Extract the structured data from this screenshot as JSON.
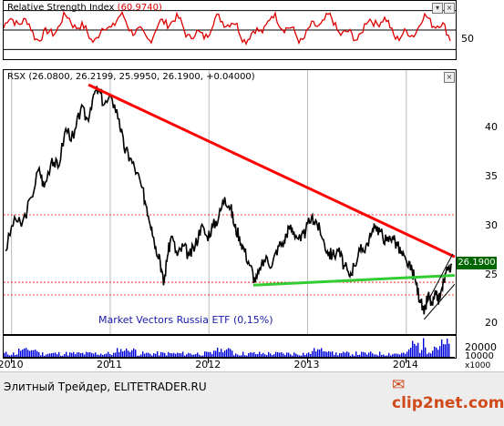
{
  "chart_data": [
    {
      "type": "line",
      "name_label": "Relative Strength Index",
      "value_label": "(60.9740)",
      "y_ticks": [
        50
      ],
      "levels": [
        30,
        50,
        70
      ],
      "ylim": [
        20,
        80
      ],
      "series_color": "#dd0000"
    },
    {
      "type": "line",
      "title": "RSX (26.0800, 26.2199, 25.9950, 26.1900, +0.04000)",
      "annotation": "Market Vectors Russia ETF (0,15%)",
      "last_value_label": "26.1900",
      "y_ticks": [
        20,
        25,
        30,
        35,
        40
      ],
      "ylim": [
        19,
        46
      ],
      "x_ticks": [
        "2010",
        "2011",
        "2012",
        "2013",
        "2014"
      ],
      "x_range": [
        2009.92,
        2014.5
      ],
      "series": [
        {
          "values": [
            [
              2009.94,
              27.5
            ],
            [
              2010.03,
              31
            ],
            [
              2010.1,
              30
            ],
            [
              2010.2,
              33
            ],
            [
              2010.28,
              36
            ],
            [
              2010.33,
              34
            ],
            [
              2010.41,
              37
            ],
            [
              2010.47,
              36
            ],
            [
              2010.55,
              40
            ],
            [
              2010.63,
              39
            ],
            [
              2010.7,
              42
            ],
            [
              2010.77,
              41
            ],
            [
              2010.83,
              43.5
            ],
            [
              2010.88,
              44
            ],
            [
              2010.94,
              42.5
            ],
            [
              2011.02,
              43
            ],
            [
              2011.09,
              41
            ],
            [
              2011.14,
              38
            ],
            [
              2011.2,
              37
            ],
            [
              2011.27,
              35.5
            ],
            [
              2011.32,
              34
            ],
            [
              2011.37,
              32
            ],
            [
              2011.42,
              30
            ],
            [
              2011.46,
              28
            ],
            [
              2011.5,
              27
            ],
            [
              2011.54,
              24
            ],
            [
              2011.58,
              27
            ],
            [
              2011.62,
              29
            ],
            [
              2011.68,
              27
            ],
            [
              2011.74,
              28
            ],
            [
              2011.8,
              27
            ],
            [
              2011.86,
              28
            ],
            [
              2011.92,
              30
            ],
            [
              2011.98,
              29
            ],
            [
              2012.04,
              30
            ],
            [
              2012.1,
              31
            ],
            [
              2012.16,
              33
            ],
            [
              2012.22,
              32
            ],
            [
              2012.26,
              30
            ],
            [
              2012.31,
              29
            ],
            [
              2012.36,
              27.5
            ],
            [
              2012.42,
              26
            ],
            [
              2012.47,
              24.3
            ],
            [
              2012.52,
              25.5
            ],
            [
              2012.58,
              27
            ],
            [
              2012.64,
              26
            ],
            [
              2012.7,
              28
            ],
            [
              2012.76,
              28.5
            ],
            [
              2012.81,
              30
            ],
            [
              2012.86,
              29.5
            ],
            [
              2012.93,
              28.5
            ],
            [
              2012.98,
              29.5
            ],
            [
              2013.04,
              31
            ],
            [
              2013.09,
              30.5
            ],
            [
              2013.14,
              29
            ],
            [
              2013.2,
              27.5
            ],
            [
              2013.25,
              27
            ],
            [
              2013.31,
              27.5
            ],
            [
              2013.37,
              26
            ],
            [
              2013.42,
              25
            ],
            [
              2013.47,
              26
            ],
            [
              2013.53,
              27.5
            ],
            [
              2013.59,
              28
            ],
            [
              2013.64,
              29
            ],
            [
              2013.69,
              30
            ],
            [
              2013.74,
              29.5
            ],
            [
              2013.8,
              28.5
            ],
            [
              2013.86,
              29
            ],
            [
              2013.91,
              28
            ],
            [
              2013.96,
              27
            ],
            [
              2014.01,
              26
            ],
            [
              2014.06,
              25.5
            ],
            [
              2014.1,
              24
            ],
            [
              2014.14,
              22.5
            ],
            [
              2014.18,
              21
            ],
            [
              2014.22,
              23
            ],
            [
              2014.26,
              22
            ],
            [
              2014.3,
              23
            ],
            [
              2014.34,
              22.5
            ],
            [
              2014.38,
              24.5
            ],
            [
              2014.42,
              25.5
            ],
            [
              2014.46,
              26.19
            ]
          ]
        }
      ],
      "trendlines": [
        {
          "name": "resistance",
          "color": "#ff0000",
          "points": [
            [
              2010.78,
              44.5
            ],
            [
              2014.49,
              26.9
            ]
          ]
        },
        {
          "name": "support",
          "color": "#33cc33",
          "points": [
            [
              2012.45,
              24.0
            ],
            [
              2014.49,
              25.0
            ]
          ]
        },
        {
          "name": "channel-upper",
          "color": "#000000",
          "points": [
            [
              2014.2,
              22
            ],
            [
              2014.47,
              27.2
            ]
          ]
        },
        {
          "name": "channel-lower",
          "color": "#000000",
          "points": [
            [
              2014.18,
              20.5
            ],
            [
              2014.49,
              24.1
            ]
          ]
        }
      ],
      "levels": [
        {
          "value": 31.2,
          "color": "#ff0000"
        },
        {
          "value": 24.3,
          "color": "#ff0000"
        },
        {
          "value": 23.0,
          "color": "#ff0000"
        }
      ]
    },
    {
      "type": "bar",
      "y_ticks": [
        10000,
        20000
      ],
      "multiplier_label": "x1000",
      "ylim": [
        0,
        30000
      ],
      "series_color": "#0000dd"
    }
  ],
  "rsi_axis": {
    "tick_50": "50"
  },
  "price_axis": {
    "t20": "20",
    "t25": "25",
    "t30": "30",
    "t35": "35",
    "t40": "40"
  },
  "vol_axis": {
    "t10000": "10000",
    "t20000": "20000",
    "mult": "x1000"
  },
  "footer": {
    "left_text": "Элитный Трейдер, ELITETRADER.RU",
    "logo_text": "clip2net.com"
  },
  "colors": {
    "price_line": "#000000",
    "rsi_line": "#dd0000",
    "volume": "#0000dd",
    "last_label_bg": "#006600"
  }
}
